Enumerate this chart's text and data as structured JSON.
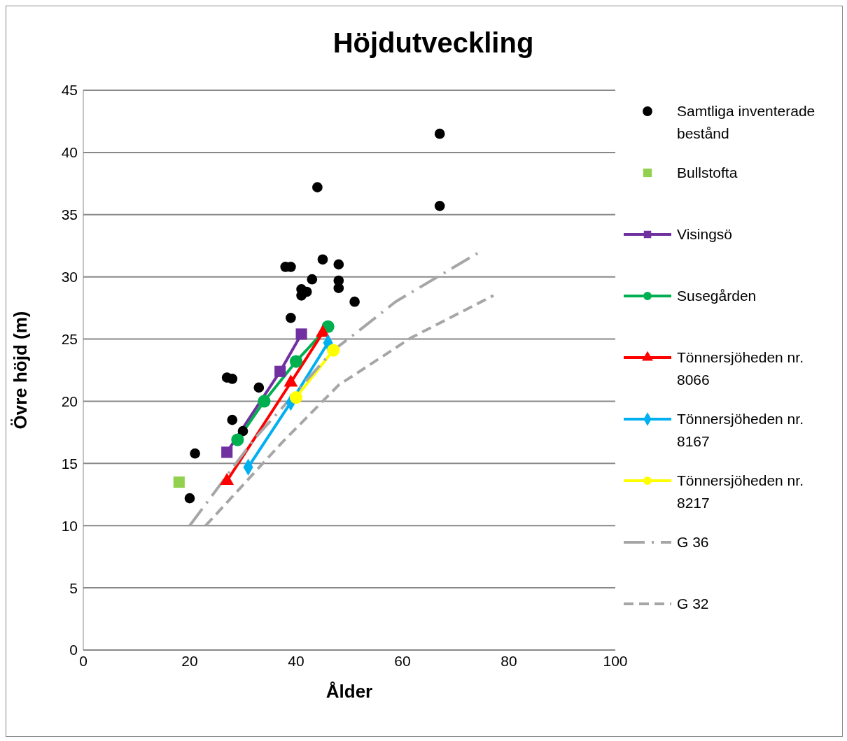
{
  "chart_data": {
    "type": "scatter",
    "title": "Höjdutveckling",
    "xlabel": "Ålder",
    "ylabel": "Övre höjd (m)",
    "xlim": [
      0,
      100
    ],
    "xticks": [
      0,
      20,
      40,
      60,
      80,
      100
    ],
    "ylim": [
      0,
      45
    ],
    "yticks": [
      0,
      5,
      10,
      15,
      20,
      25,
      30,
      35,
      40,
      45
    ],
    "grid": "y",
    "legend": "right",
    "series": [
      {
        "name": "Samtliga inventerade bestånd",
        "marker": "circle",
        "color": "#000000",
        "x": [
          20,
          21,
          27,
          28,
          28,
          30,
          33,
          38,
          39,
          39,
          41,
          41,
          42,
          43,
          44,
          45,
          48,
          48,
          48,
          51,
          67,
          67
        ],
        "values": [
          12.2,
          15.8,
          21.9,
          21.8,
          18.5,
          17.6,
          21.1,
          30.8,
          30.8,
          26.7,
          29.0,
          28.5,
          28.8,
          29.8,
          37.2,
          31.4,
          31.0,
          29.7,
          29.1,
          28.0,
          41.5,
          35.7
        ]
      },
      {
        "name": "Bullstofta",
        "marker": "square",
        "color": "#92d050",
        "x": [
          18
        ],
        "values": [
          13.5
        ]
      },
      {
        "name": "Visingsö",
        "type": "line",
        "marker": "square",
        "line_style": "solid",
        "color": "#7030a0",
        "x": [
          27,
          37,
          41
        ],
        "values": [
          15.9,
          22.4,
          25.4
        ]
      },
      {
        "name": "Susegården",
        "type": "line",
        "marker": "circle",
        "line_style": "solid",
        "color": "#00b050",
        "x": [
          29,
          34,
          40,
          46
        ],
        "values": [
          16.9,
          20.0,
          23.2,
          26.0
        ]
      },
      {
        "name": "Tönnersjöheden nr. 8066",
        "type": "line",
        "marker": "triangle",
        "line_style": "solid",
        "color": "#ff0000",
        "x": [
          27,
          39,
          45
        ],
        "values": [
          13.6,
          21.5,
          25.5
        ]
      },
      {
        "name": "Tönnersjöheden nr. 8167",
        "type": "line",
        "marker": "diamond",
        "line_style": "solid",
        "color": "#00b0f0",
        "x": [
          31,
          39,
          46
        ],
        "values": [
          14.7,
          19.9,
          24.7
        ]
      },
      {
        "name": "Tönnersjöheden nr. 8217",
        "type": "line",
        "marker": "circle",
        "line_style": "solid",
        "color": "#ffff00",
        "x": [
          40,
          47
        ],
        "values": [
          20.3,
          24.1
        ]
      },
      {
        "name": "G 36",
        "type": "line",
        "marker": "none",
        "line_style": "dashdot",
        "color": "#a6a6a6",
        "x": [
          20,
          32,
          36,
          47,
          51.6,
          58.7,
          74.1
        ],
        "values": [
          10.0,
          16.9,
          18.8,
          24.1,
          25.6,
          28.0,
          31.9
        ]
      },
      {
        "name": "G 32",
        "type": "line",
        "marker": "none",
        "line_style": "dashed",
        "color": "#a6a6a6",
        "x": [
          23,
          37.4,
          48,
          61.6,
          77.1
        ],
        "values": [
          10.0,
          16.7,
          21.3,
          25.1,
          28.5
        ]
      }
    ]
  }
}
